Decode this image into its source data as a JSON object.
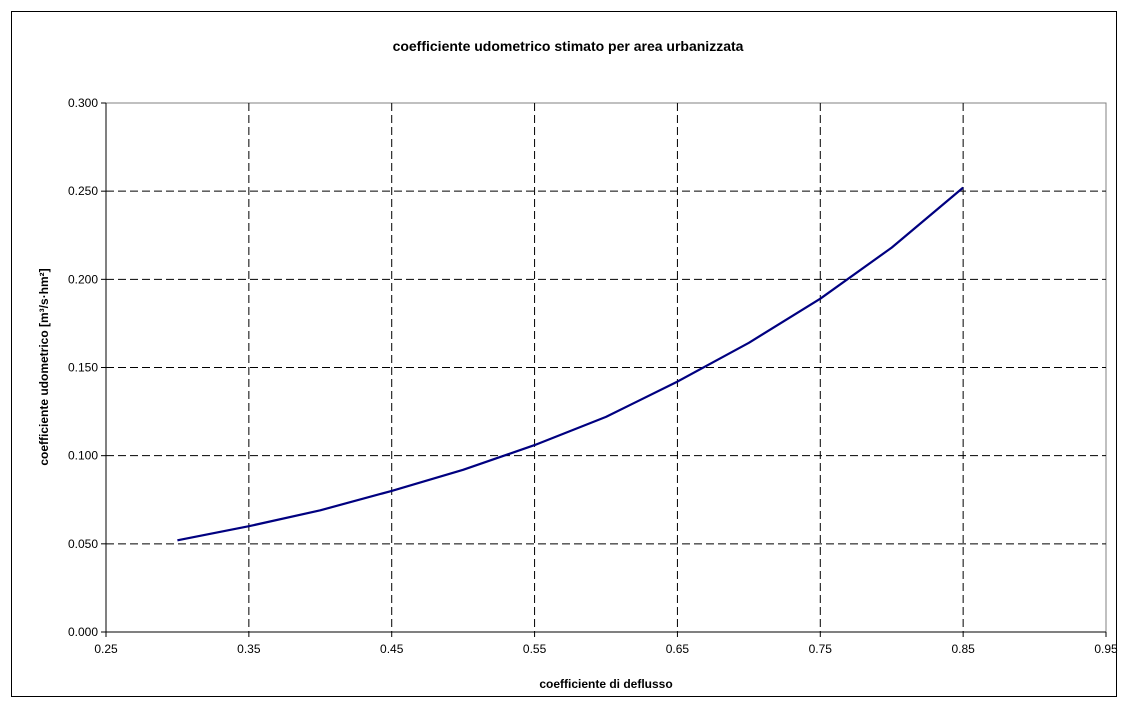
{
  "chart_data": {
    "type": "line",
    "title": "coefficiente udometrico stimato per area urbanizzata",
    "xlabel": "coefficiente di deflusso",
    "ylabel": "coefficiente udometrico [m³/s·hm²]",
    "xlim": [
      0.25,
      0.95
    ],
    "ylim": [
      0.0,
      0.3
    ],
    "x_ticks": [
      "0.25",
      "0.35",
      "0.45",
      "0.55",
      "0.65",
      "0.75",
      "0.85",
      "0.95"
    ],
    "y_ticks": [
      "0.000",
      "0.050",
      "0.100",
      "0.150",
      "0.200",
      "0.250",
      "0.300"
    ],
    "grid": true,
    "legend": "none",
    "series": [
      {
        "color": "#000080",
        "x": [
          0.3,
          0.35,
          0.4,
          0.45,
          0.5,
          0.55,
          0.6,
          0.65,
          0.7,
          0.75,
          0.8,
          0.85
        ],
        "y": [
          0.052,
          0.06,
          0.069,
          0.08,
          0.092,
          0.106,
          0.122,
          0.142,
          0.164,
          0.189,
          0.218,
          0.252
        ]
      }
    ]
  }
}
